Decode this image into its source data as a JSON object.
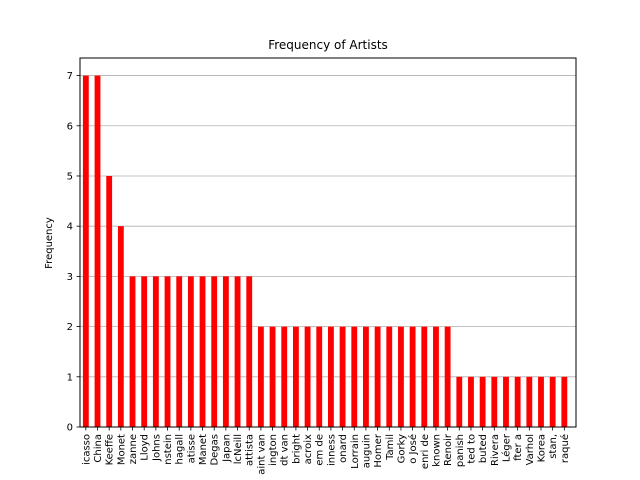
{
  "chart_data": {
    "type": "bar",
    "title": "Frequency of Artists",
    "xlabel": "",
    "ylabel": "Frequency",
    "ylim": [
      0,
      7.35
    ],
    "yticks": [
      0,
      1,
      2,
      3,
      4,
      5,
      6,
      7
    ],
    "grid": "y",
    "legend": "none",
    "bar_color": "#ff0000",
    "categories": [
      "icasso",
      "China",
      "Keeffe",
      "Monet",
      "zanne",
      "Lloyd",
      "Johns",
      "nstein",
      "hagall",
      "atisse",
      "Manet",
      "Degas",
      "Japan",
      "lcNeill",
      "attista",
      "aint van",
      "ington",
      "dt van",
      "bright",
      "acroix",
      "em de",
      "inness",
      "onard",
      "Lorrain",
      "auguin",
      "Homer",
      "Tamil",
      "Gorky",
      "o José",
      "enri de",
      "known",
      "Renoir",
      "panish",
      "ted to",
      "buted",
      "Rivera",
      "Léger",
      "fter a",
      "Varhol",
      "Korea",
      "stan,",
      "raqué"
    ],
    "values": [
      7,
      7,
      5,
      4,
      3,
      3,
      3,
      3,
      3,
      3,
      3,
      3,
      3,
      3,
      3,
      2,
      2,
      2,
      2,
      2,
      2,
      2,
      2,
      2,
      2,
      2,
      2,
      2,
      2,
      2,
      2,
      2,
      1,
      1,
      1,
      1,
      1,
      1,
      1,
      1,
      1,
      1
    ]
  }
}
